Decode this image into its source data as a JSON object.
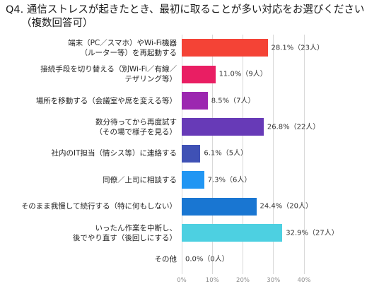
{
  "chart_data": {
    "type": "bar",
    "orientation": "horizontal",
    "title": "Q4. 通信ストレスが起きたとき、最初に取ることが多い対応をお選びください",
    "subtitle": "（複数回答可）",
    "categories": [
      [
        "端末（PC／スマホ）やWi-Fi機器",
        "（ルーター等）を再起動する"
      ],
      [
        "接続手段を切り替える（別Wi-Fi／有線／",
        "テザリング等）"
      ],
      [
        "場所を移動する（会議室や席を変える等）"
      ],
      [
        "数分待ってから再度試す",
        "（その場で様子を見る）"
      ],
      [
        "社内のIT担当（情シス等）に連絡する"
      ],
      [
        "同僚／上司に相談する"
      ],
      [
        "そのまま我慢して続行する（特に何もしない）"
      ],
      [
        "いったん作業を中断し、",
        "後でやり直す（後回しにする）"
      ],
      [
        "その他"
      ]
    ],
    "values": [
      28.1,
      11.0,
      8.5,
      26.8,
      6.1,
      7.3,
      24.4,
      32.9,
      0.0
    ],
    "data_labels": [
      "28.1%（23人）",
      "11.0%（9人）",
      "8.5%（7人）",
      "26.8%（22人）",
      "6.1%（5人）",
      "7.3%（6人）",
      "24.4%（20人）",
      "32.9%（27人）",
      "0.0%（0人）"
    ],
    "colors": [
      "#F44336",
      "#E91E63",
      "#9C27B0",
      "#673AB7",
      "#3F51B5",
      "#2196F3",
      "#1976D2",
      "#4DD0E1"
    ],
    "xlim": [
      0,
      40
    ],
    "x_ticks": [
      0,
      10,
      20,
      30,
      40
    ],
    "x_tick_labels": [
      "0%",
      "10%",
      "20%",
      "30%",
      "40%"
    ],
    "grid": true,
    "legend": "none"
  }
}
